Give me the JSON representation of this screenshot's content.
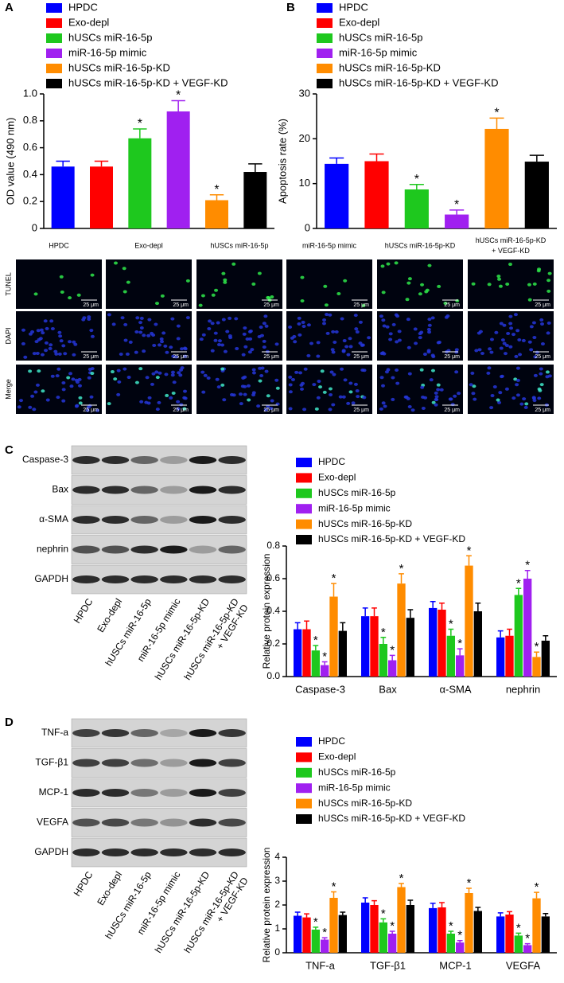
{
  "panels": [
    "A",
    "B",
    "C",
    "D"
  ],
  "microscopy": {
    "columns": [
      "HPDC",
      "Exo-depl",
      "hUSCs miR-16-5p",
      "miR-16-5p mimic",
      "hUSCs miR-16-5p-KD",
      [
        "hUSCs miR-16-5p-KD",
        "+ VEGF-KD"
      ]
    ],
    "rows": [
      "TUNEL",
      "DAPI",
      "Merge"
    ],
    "scale_bar": "25 μm"
  },
  "blots_c": {
    "rows": [
      "Caspase-3",
      "Bax",
      "α-SMA",
      "nephrin",
      "GAPDH"
    ],
    "lanes": [
      "HPDC",
      "Exo-depl",
      "hUSCs miR-16-5p",
      "miR-16-5p mimic",
      "hUSCs miR-16-5p-KD",
      [
        "hUSCs miR-16-5p-KD",
        "+ VEGF-KD"
      ]
    ]
  },
  "blots_d": {
    "rows": [
      "TNF-a",
      "TGF-β1",
      "MCP-1",
      "VEGFA",
      "GAPDH"
    ],
    "lanes": [
      "HPDC",
      "Exo-depl",
      "hUSCs miR-16-5p",
      "miR-16-5p mimic",
      "hUSCs miR-16-5p-KD",
      [
        "hUSCs miR-16-5p-KD",
        "+ VEGF-KD"
      ]
    ]
  },
  "chart_data": [
    {
      "type": "bar",
      "ylabel": "OD value (490 nm)",
      "ylim": [
        0,
        1.0
      ],
      "yticks": [
        0,
        {
          "value": 0.2,
          "label": "0.2"
        },
        {
          "value": 0.4,
          "label": "0.4"
        },
        {
          "value": 0.6,
          "label": "0.6"
        },
        {
          "value": 0.8,
          "label": "0.8"
        },
        {
          "value": 1.0,
          "label": "1.0"
        }
      ],
      "series": [
        {
          "name": "HPDC",
          "color": "#0000ff",
          "values": [
            0.46
          ],
          "errors": [
            0.04
          ],
          "marks": [
            null
          ]
        },
        {
          "name": "Exo-depl",
          "color": "#ff0000",
          "values": [
            0.46
          ],
          "errors": [
            0.04
          ],
          "marks": [
            null
          ]
        },
        {
          "name": "hUSCs miR-16-5p",
          "color": "#1ec81e",
          "values": [
            0.67
          ],
          "errors": [
            0.07
          ],
          "marks": [
            "*"
          ]
        },
        {
          "name": "miR-16-5p mimic",
          "color": "#a020f0",
          "values": [
            0.87
          ],
          "errors": [
            0.08
          ],
          "marks": [
            "*"
          ]
        },
        {
          "name": "hUSCs miR-16-5p-KD",
          "color": "#ff8c00",
          "values": [
            0.21
          ],
          "errors": [
            0.04
          ],
          "marks": [
            "*"
          ]
        },
        {
          "name": "hUSCs miR-16-5p-KD + VEGF-KD",
          "color": "#000000",
          "values": [
            0.42
          ],
          "errors": [
            0.06
          ],
          "marks": [
            null
          ]
        }
      ]
    },
    {
      "type": "bar",
      "ylabel": "Apoptosis rate (%)",
      "ylim": [
        0,
        30
      ],
      "yticks": [
        0,
        10,
        20,
        30
      ],
      "series": [
        {
          "name": "HPDC",
          "color": "#0000ff",
          "values": [
            14.4
          ],
          "errors": [
            1.3
          ],
          "marks": [
            null
          ]
        },
        {
          "name": "Exo-depl",
          "color": "#ff0000",
          "values": [
            15.0
          ],
          "errors": [
            1.6
          ],
          "marks": [
            null
          ]
        },
        {
          "name": "hUSCs miR-16-5p",
          "color": "#1ec81e",
          "values": [
            8.7
          ],
          "errors": [
            1.1
          ],
          "marks": [
            "*"
          ]
        },
        {
          "name": "miR-16-5p mimic",
          "color": "#a020f0",
          "values": [
            3.1
          ],
          "errors": [
            1.0
          ],
          "marks": [
            "*"
          ]
        },
        {
          "name": "hUSCs miR-16-5p-KD",
          "color": "#ff8c00",
          "values": [
            22.2
          ],
          "errors": [
            2.4
          ],
          "marks": [
            "*"
          ]
        },
        {
          "name": "hUSCs miR-16-5p-KD + VEGF-KD",
          "color": "#000000",
          "values": [
            14.9
          ],
          "errors": [
            1.4
          ],
          "marks": [
            null
          ]
        }
      ]
    },
    {
      "type": "bar",
      "ylabel": "Relative protein expression",
      "ylim": [
        0,
        0.8
      ],
      "yticks": [
        {
          "value": 0,
          "label": "0.0"
        },
        {
          "value": 0.2,
          "label": "0.2"
        },
        {
          "value": 0.4,
          "label": "0.4"
        },
        {
          "value": 0.6,
          "label": "0.6"
        },
        {
          "value": 0.8,
          "label": "0.8"
        }
      ],
      "categories": [
        "Caspase-3",
        "Bax",
        "α-SMA",
        "nephrin"
      ],
      "series": [
        {
          "name": "HPDC",
          "color": "#0000ff",
          "values": [
            0.29,
            0.37,
            0.42,
            0.24
          ],
          "errors": [
            0.04,
            0.05,
            0.04,
            0.04
          ],
          "marks": [
            null,
            null,
            null,
            null
          ]
        },
        {
          "name": "Exo-depl",
          "color": "#ff0000",
          "values": [
            0.29,
            0.37,
            0.41,
            0.25
          ],
          "errors": [
            0.05,
            0.05,
            0.04,
            0.04
          ],
          "marks": [
            null,
            null,
            null,
            null
          ]
        },
        {
          "name": "hUSCs miR-16-5p",
          "color": "#1ec81e",
          "values": [
            0.16,
            0.2,
            0.25,
            0.5
          ],
          "errors": [
            0.03,
            0.04,
            0.04,
            0.04
          ],
          "marks": [
            "*",
            "*",
            "*",
            "*"
          ]
        },
        {
          "name": "miR-16-5p mimic",
          "color": "#a020f0",
          "values": [
            0.07,
            0.1,
            0.13,
            0.6
          ],
          "errors": [
            0.02,
            0.03,
            0.04,
            0.05
          ],
          "marks": [
            "*",
            "*",
            "*",
            "*"
          ]
        },
        {
          "name": "hUSCs miR-16-5p-KD",
          "color": "#ff8c00",
          "values": [
            0.49,
            0.57,
            0.68,
            0.12
          ],
          "errors": [
            0.08,
            0.06,
            0.06,
            0.03
          ],
          "marks": [
            "*",
            "*",
            "*",
            "*"
          ]
        },
        {
          "name": "hUSCs miR-16-5p-KD + VEGF-KD",
          "color": "#000000",
          "values": [
            0.28,
            0.36,
            0.4,
            0.22
          ],
          "errors": [
            0.05,
            0.05,
            0.05,
            0.03
          ],
          "marks": [
            null,
            null,
            null,
            null
          ]
        }
      ]
    },
    {
      "type": "bar",
      "ylabel": "Relative protein expression",
      "ylim": [
        0,
        4
      ],
      "yticks": [
        0,
        1,
        2,
        3,
        4
      ],
      "categories": [
        "TNF-a",
        "TGF-β1",
        "MCP-1",
        "VEGFA"
      ],
      "series": [
        {
          "name": "HPDC",
          "color": "#0000ff",
          "values": [
            1.55,
            2.1,
            1.87,
            1.52
          ],
          "errors": [
            0.15,
            0.2,
            0.2,
            0.15
          ],
          "marks": [
            null,
            null,
            null,
            null
          ]
        },
        {
          "name": "Exo-depl",
          "color": "#ff0000",
          "values": [
            1.48,
            2.0,
            1.9,
            1.6
          ],
          "errors": [
            0.15,
            0.18,
            0.2,
            0.12
          ],
          "marks": [
            null,
            null,
            null,
            null
          ]
        },
        {
          "name": "hUSCs miR-16-5p",
          "color": "#1ec81e",
          "values": [
            0.97,
            1.27,
            0.8,
            0.72
          ],
          "errors": [
            0.1,
            0.15,
            0.1,
            0.1
          ],
          "marks": [
            "*",
            "*",
            "*",
            "*"
          ]
        },
        {
          "name": "miR-16-5p mimic",
          "color": "#a020f0",
          "values": [
            0.55,
            0.8,
            0.43,
            0.32
          ],
          "errors": [
            0.08,
            0.1,
            0.08,
            0.06
          ],
          "marks": [
            "*",
            "*",
            "*",
            "*"
          ]
        },
        {
          "name": "hUSCs miR-16-5p-KD",
          "color": "#ff8c00",
          "values": [
            2.3,
            2.75,
            2.5,
            2.28
          ],
          "errors": [
            0.25,
            0.15,
            0.2,
            0.25
          ],
          "marks": [
            "*",
            "*",
            "*",
            "*"
          ]
        },
        {
          "name": "hUSCs miR-16-5p-KD + VEGF-KD",
          "color": "#000000",
          "values": [
            1.58,
            2.0,
            1.75,
            1.52
          ],
          "errors": [
            0.12,
            0.2,
            0.15,
            0.12
          ],
          "marks": [
            null,
            null,
            null,
            null
          ]
        }
      ]
    }
  ]
}
